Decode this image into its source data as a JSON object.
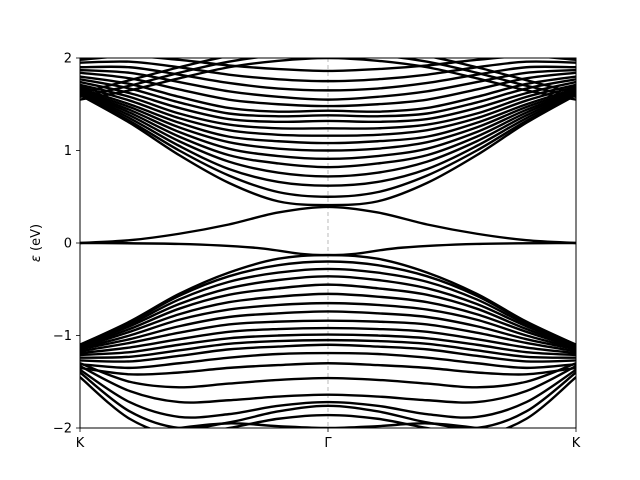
{
  "chart_data": {
    "type": "line",
    "title": "",
    "xlabel": "",
    "ylabel": "ε (eV)",
    "ylabel_symbol": "ε",
    "ylabel_unit": " (eV)",
    "xlim": [
      0,
      1
    ],
    "ylim": [
      -2,
      2
    ],
    "x_ticks": [
      {
        "value": 0,
        "label": "K"
      },
      {
        "value": 0.5,
        "label": "Γ"
      },
      {
        "value": 1,
        "label": "K"
      }
    ],
    "y_ticks": [
      {
        "value": -2,
        "label": "−2"
      },
      {
        "value": -1,
        "label": "−1"
      },
      {
        "value": 0,
        "label": "0"
      },
      {
        "value": 1,
        "label": "1"
      },
      {
        "value": 2,
        "label": "2"
      }
    ],
    "vertical_guide_x": 0.5,
    "grid": false,
    "legend": "none",
    "line_color": "#000000",
    "guide_color": "#aaaaaa",
    "series": [
      {
        "x": [
          0,
          0.1,
          0.2,
          0.3,
          0.4,
          0.5
        ],
        "y": [
          0.0,
          0.03,
          0.1,
          0.2,
          0.33,
          0.39
        ]
      },
      {
        "x": [
          0,
          0.2,
          0.35,
          0.45,
          0.5
        ],
        "y": [
          0.0,
          -0.01,
          -0.05,
          -0.12,
          -0.13
        ]
      },
      {
        "x": [
          0,
          0.1,
          0.2,
          0.3,
          0.4,
          0.5
        ],
        "y": [
          1.6,
          1.3,
          0.95,
          0.65,
          0.45,
          0.41
        ]
      },
      {
        "x": [
          0,
          0.1,
          0.2,
          0.3,
          0.4,
          0.5
        ],
        "y": [
          1.6,
          1.32,
          1.0,
          0.73,
          0.55,
          0.5
        ]
      },
      {
        "x": [
          0,
          0.1,
          0.2,
          0.3,
          0.4,
          0.5
        ],
        "y": [
          1.61,
          1.35,
          1.05,
          0.8,
          0.66,
          0.62
        ]
      },
      {
        "x": [
          0,
          0.1,
          0.2,
          0.3,
          0.4,
          0.5
        ],
        "y": [
          1.62,
          1.38,
          1.1,
          0.88,
          0.76,
          0.72
        ]
      },
      {
        "x": [
          0,
          0.1,
          0.2,
          0.3,
          0.4,
          0.5
        ],
        "y": [
          1.63,
          1.41,
          1.15,
          0.95,
          0.86,
          0.82
        ]
      },
      {
        "x": [
          0,
          0.1,
          0.2,
          0.3,
          0.4,
          0.5
        ],
        "y": [
          1.64,
          1.44,
          1.2,
          1.02,
          0.94,
          0.91
        ]
      },
      {
        "x": [
          0,
          0.1,
          0.2,
          0.3,
          0.4,
          0.5
        ],
        "y": [
          1.65,
          1.47,
          1.25,
          1.09,
          1.02,
          1.0
        ]
      },
      {
        "x": [
          0,
          0.1,
          0.2,
          0.3,
          0.4,
          0.5
        ],
        "y": [
          1.67,
          1.5,
          1.3,
          1.15,
          1.1,
          1.08
        ]
      },
      {
        "x": [
          0,
          0.1,
          0.2,
          0.3,
          0.4,
          0.5
        ],
        "y": [
          1.69,
          1.54,
          1.35,
          1.22,
          1.17,
          1.16
        ]
      },
      {
        "x": [
          0,
          0.1,
          0.2,
          0.3,
          0.4,
          0.5
        ],
        "y": [
          1.71,
          1.58,
          1.4,
          1.28,
          1.24,
          1.24
        ]
      },
      {
        "x": [
          0,
          0.1,
          0.2,
          0.3,
          0.4,
          0.5
        ],
        "y": [
          1.74,
          1.62,
          1.46,
          1.34,
          1.31,
          1.32
        ]
      },
      {
        "x": [
          0,
          0.1,
          0.2,
          0.3,
          0.4,
          0.5
        ],
        "y": [
          1.77,
          1.67,
          1.52,
          1.4,
          1.37,
          1.38
        ]
      },
      {
        "x": [
          0,
          0.1,
          0.2,
          0.3,
          0.4,
          0.5
        ],
        "y": [
          1.8,
          1.72,
          1.58,
          1.46,
          1.42,
          1.43
        ]
      },
      {
        "x": [
          0,
          0.1,
          0.2,
          0.3,
          0.4,
          0.5
        ],
        "y": [
          1.84,
          1.78,
          1.66,
          1.55,
          1.5,
          1.48
        ]
      },
      {
        "x": [
          0,
          0.1,
          0.2,
          0.3,
          0.4,
          0.5
        ],
        "y": [
          1.87,
          1.84,
          1.74,
          1.64,
          1.58,
          1.55
        ]
      },
      {
        "x": [
          0,
          0.1,
          0.2,
          0.3,
          0.4,
          0.5
        ],
        "y": [
          1.9,
          1.9,
          1.82,
          1.73,
          1.67,
          1.65
        ]
      },
      {
        "x": [
          0,
          0.1,
          0.2,
          0.3,
          0.4,
          0.5
        ],
        "y": [
          1.95,
          1.96,
          1.9,
          1.82,
          1.77,
          1.75
        ]
      },
      {
        "x": [
          0,
          0.1,
          0.2,
          0.3,
          0.4,
          0.5
        ],
        "y": [
          1.98,
          2.02,
          1.98,
          1.92,
          1.88,
          1.86
        ]
      },
      {
        "x": [
          0,
          0.1,
          0.2,
          0.3,
          0.4,
          0.5
        ],
        "y": [
          1.55,
          1.65,
          1.78,
          1.9,
          1.97,
          2.0
        ]
      },
      {
        "x": [
          0,
          0.1,
          0.2,
          0.3,
          0.4,
          0.5
        ],
        "y": [
          1.58,
          1.7,
          1.84,
          1.96,
          2.03,
          2.05
        ]
      },
      {
        "x": [
          0,
          0.1,
          0.2,
          0.3,
          0.4,
          0.5
        ],
        "y": [
          1.62,
          1.76,
          1.9,
          2.02,
          2.08,
          2.1
        ]
      },
      {
        "x": [
          0,
          0.1,
          0.2,
          0.3,
          0.4,
          0.5
        ],
        "y": [
          -1.1,
          -0.85,
          -0.55,
          -0.32,
          -0.17,
          -0.13
        ]
      },
      {
        "x": [
          0,
          0.1,
          0.2,
          0.3,
          0.4,
          0.5
        ],
        "y": [
          -1.1,
          -0.86,
          -0.57,
          -0.36,
          -0.24,
          -0.2
        ]
      },
      {
        "x": [
          0,
          0.1,
          0.2,
          0.3,
          0.4,
          0.5
        ],
        "y": [
          -1.11,
          -0.88,
          -0.61,
          -0.42,
          -0.32,
          -0.28
        ]
      },
      {
        "x": [
          0,
          0.1,
          0.2,
          0.3,
          0.4,
          0.5
        ],
        "y": [
          -1.11,
          -0.9,
          -0.66,
          -0.49,
          -0.4,
          -0.36
        ]
      },
      {
        "x": [
          0,
          0.1,
          0.2,
          0.3,
          0.4,
          0.5
        ],
        "y": [
          -1.12,
          -0.93,
          -0.71,
          -0.56,
          -0.49,
          -0.45
        ]
      },
      {
        "x": [
          0,
          0.1,
          0.2,
          0.3,
          0.4,
          0.5
        ],
        "y": [
          -1.13,
          -0.96,
          -0.77,
          -0.64,
          -0.58,
          -0.55
        ]
      },
      {
        "x": [
          0,
          0.1,
          0.2,
          0.3,
          0.4,
          0.5
        ],
        "y": [
          -1.14,
          -1.0,
          -0.83,
          -0.72,
          -0.67,
          -0.65
        ]
      },
      {
        "x": [
          0,
          0.1,
          0.2,
          0.3,
          0.4,
          0.5
        ],
        "y": [
          -1.15,
          -1.04,
          -0.9,
          -0.8,
          -0.76,
          -0.74
        ]
      },
      {
        "x": [
          0,
          0.1,
          0.2,
          0.3,
          0.4,
          0.5
        ],
        "y": [
          -1.17,
          -1.08,
          -0.97,
          -0.88,
          -0.85,
          -0.84
        ]
      },
      {
        "x": [
          0,
          0.1,
          0.2,
          0.3,
          0.4,
          0.5
        ],
        "y": [
          -1.19,
          -1.13,
          -1.04,
          -0.96,
          -0.93,
          -0.92
        ]
      },
      {
        "x": [
          0,
          0.1,
          0.2,
          0.3,
          0.4,
          0.5
        ],
        "y": [
          -1.21,
          -1.18,
          -1.1,
          -1.03,
          -1.0,
          -0.99
        ]
      },
      {
        "x": [
          0,
          0.1,
          0.2,
          0.3,
          0.4,
          0.5
        ],
        "y": [
          -1.24,
          -1.23,
          -1.16,
          -1.09,
          -1.06,
          -1.05
        ]
      },
      {
        "x": [
          0,
          0.1,
          0.2,
          0.3,
          0.4,
          0.5
        ],
        "y": [
          -1.27,
          -1.28,
          -1.22,
          -1.15,
          -1.12,
          -1.1
        ]
      },
      {
        "x": [
          0,
          0.1,
          0.2,
          0.3,
          0.4,
          0.5
        ],
        "y": [
          -1.31,
          -1.35,
          -1.3,
          -1.24,
          -1.2,
          -1.19
        ]
      },
      {
        "x": [
          0,
          0.1,
          0.2,
          0.3,
          0.4,
          0.5
        ],
        "y": [
          -1.35,
          -1.42,
          -1.4,
          -1.35,
          -1.32,
          -1.3
        ]
      },
      {
        "x": [
          0,
          0.1,
          0.2,
          0.3,
          0.4,
          0.5
        ],
        "y": [
          -1.3,
          -1.5,
          -1.56,
          -1.52,
          -1.48,
          -1.46
        ]
      },
      {
        "x": [
          0,
          0.1,
          0.2,
          0.3,
          0.4,
          0.5
        ],
        "y": [
          -1.33,
          -1.6,
          -1.72,
          -1.7,
          -1.66,
          -1.64
        ]
      },
      {
        "x": [
          0,
          0.1,
          0.2,
          0.3,
          0.4,
          0.5
        ],
        "y": [
          -1.37,
          -1.72,
          -1.88,
          -1.85,
          -1.76,
          -1.72
        ]
      },
      {
        "x": [
          0,
          0.1,
          0.2,
          0.3,
          0.4,
          0.5
        ],
        "y": [
          -1.4,
          -1.82,
          -2.0,
          -1.94,
          -1.82,
          -1.76
        ]
      },
      {
        "x": [
          0,
          0.1,
          0.2,
          0.3,
          0.4,
          0.5
        ],
        "y": [
          -1.45,
          -1.9,
          -2.08,
          -2.0,
          -1.9,
          -1.86
        ]
      },
      {
        "x": [
          0.15,
          0.2,
          0.3,
          0.4,
          0.5
        ],
        "y": [
          -2.05,
          -2.0,
          -1.95,
          -1.98,
          -2.0
        ]
      }
    ]
  }
}
